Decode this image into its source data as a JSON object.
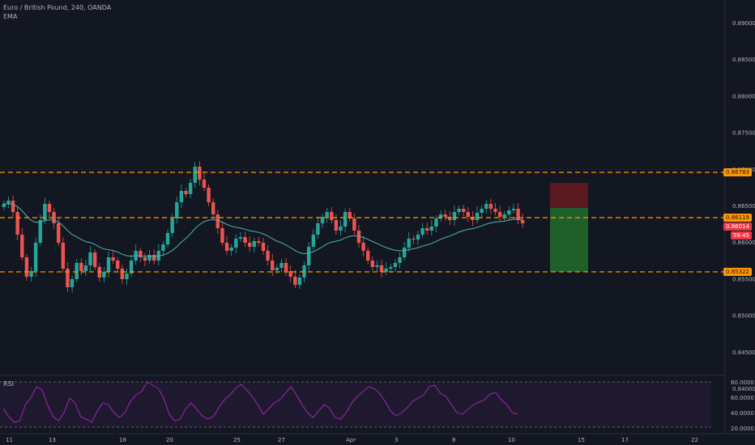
{
  "header": {
    "symbol": "Euro / British Pound, 240, OANDA",
    "indicator": "EMA"
  },
  "rsi": {
    "label": "RSI",
    "levels": [
      "80.0000",
      "60.0000",
      "40.0000",
      "20.0000"
    ]
  },
  "price_axis": {
    "labels": [
      "0.89000",
      "0.88500",
      "0.88000",
      "0.87500",
      "0.87000",
      "0.86500",
      "0.86000",
      "0.85500",
      "0.85000",
      "0.84500",
      "0.84000"
    ]
  },
  "time_axis": {
    "labels": [
      "11",
      "13",
      "18",
      "20",
      "25",
      "27",
      "Apr",
      "3",
      "8",
      "10",
      "15",
      "17",
      "22"
    ]
  },
  "price_tags": {
    "upper": {
      "text": "0.86783",
      "color": "#ff9800"
    },
    "mid": {
      "text": "0.86119",
      "color": "#ff9800"
    },
    "current": {
      "text": "0.86014",
      "color": "#f23645"
    },
    "countdown": {
      "text": "59:45",
      "color": "#f23645"
    },
    "lower": {
      "text": "0.85322",
      "color": "#ff9800"
    }
  },
  "colors": {
    "background": "#131722",
    "bull": "#26a69a",
    "bear": "#ef5350",
    "ema": "#4db6ac",
    "level_lines": "#ff9800",
    "rsi_line": "#9c27b0",
    "rsi_fill": "#2a1b3d",
    "risk_zone": "#5a1a1f",
    "reward_zone": "#1e5f2a"
  }
}
